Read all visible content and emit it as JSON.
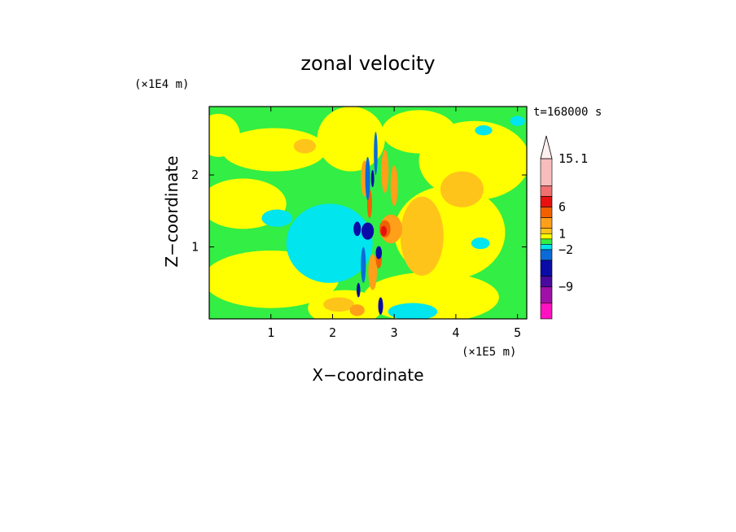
{
  "chart_data": {
    "type": "heatmap",
    "title": "zonal velocity",
    "xlabel": "X−coordinate",
    "ylabel": "Z−coordinate",
    "x_unit": "(×1E5 m)",
    "y_unit": "(×1E4 m)",
    "time_label": "t=168000 s",
    "xlim": [
      0,
      5.15
    ],
    "ylim": [
      0,
      2.95
    ],
    "x_ticks": [
      1,
      2,
      3,
      4,
      5
    ],
    "y_ticks": [
      1,
      2
    ],
    "x_tick_labels": [
      "1",
      "2",
      "3",
      "4",
      "5"
    ],
    "y_tick_labels": [
      "1",
      "2"
    ],
    "colorbar": {
      "labels": [
        {
          "value": 15.1,
          "text": "15.1"
        },
        {
          "value": 6,
          "text": "6"
        },
        {
          "value": 1,
          "text": "1"
        },
        {
          "value": -2,
          "text": "−2"
        },
        {
          "value": -9,
          "text": "−9"
        }
      ],
      "levels": [
        {
          "color": "#f7bcbc",
          "max": 15.1
        },
        {
          "color": "#f07070",
          "max": 10
        },
        {
          "color": "#e81010",
          "max": 8
        },
        {
          "color": "#f06000",
          "max": 6
        },
        {
          "color": "#ff9f1a",
          "max": 4
        },
        {
          "color": "#ffc41a",
          "max": 2
        },
        {
          "color": "#ffff00",
          "max": 1
        },
        {
          "color": "#33ee44",
          "max": 0
        },
        {
          "color": "#00e5ee",
          "max": -1
        },
        {
          "color": "#0a6bd8",
          "max": -2
        },
        {
          "color": "#0b0ba8",
          "max": -4
        },
        {
          "color": "#4a0a9e",
          "max": -7
        },
        {
          "color": "#a010a8",
          "max": -9
        },
        {
          "color": "#ff10c0",
          "max": -12
        }
      ]
    },
    "background_color": "#33ee44",
    "regions": [
      {
        "color": "#ffff00",
        "x": 0.15,
        "z": 2.55,
        "rx": 0.35,
        "rz": 0.3
      },
      {
        "color": "#ffff00",
        "x": 1.05,
        "z": 2.35,
        "rx": 0.85,
        "rz": 0.3
      },
      {
        "color": "#ffff00",
        "x": 0.55,
        "z": 1.6,
        "rx": 0.7,
        "rz": 0.35
      },
      {
        "color": "#ffff00",
        "x": 1.0,
        "z": 0.55,
        "rx": 1.1,
        "rz": 0.4
      },
      {
        "color": "#ffff00",
        "x": 2.2,
        "z": 0.15,
        "rx": 0.6,
        "rz": 0.25
      },
      {
        "color": "#ffff00",
        "x": 3.6,
        "z": 0.3,
        "rx": 1.1,
        "rz": 0.35
      },
      {
        "color": "#ffff00",
        "x": 3.9,
        "z": 1.2,
        "rx": 0.9,
        "rz": 0.65
      },
      {
        "color": "#ffff00",
        "x": 4.3,
        "z": 2.2,
        "rx": 0.9,
        "rz": 0.55
      },
      {
        "color": "#ffff00",
        "x": 2.3,
        "z": 2.5,
        "rx": 0.55,
        "rz": 0.45
      },
      {
        "color": "#ffff00",
        "x": 3.4,
        "z": 2.6,
        "rx": 0.6,
        "rz": 0.3
      },
      {
        "color": "#00e5ee",
        "x": 1.95,
        "z": 1.05,
        "rx": 0.7,
        "rz": 0.55
      },
      {
        "color": "#00e5ee",
        "x": 1.1,
        "z": 1.4,
        "rx": 0.25,
        "rz": 0.12
      },
      {
        "color": "#00e5ee",
        "x": 3.3,
        "z": 0.1,
        "rx": 0.4,
        "rz": 0.12
      },
      {
        "color": "#00e5ee",
        "x": 4.45,
        "z": 2.62,
        "rx": 0.14,
        "rz": 0.07
      },
      {
        "color": "#00e5ee",
        "x": 5.0,
        "z": 2.75,
        "rx": 0.12,
        "rz": 0.07
      },
      {
        "color": "#00e5ee",
        "x": 4.4,
        "z": 1.05,
        "rx": 0.15,
        "rz": 0.08
      },
      {
        "color": "#ffc41a",
        "x": 3.45,
        "z": 1.15,
        "rx": 0.35,
        "rz": 0.55
      },
      {
        "color": "#ffc41a",
        "x": 4.1,
        "z": 1.8,
        "rx": 0.35,
        "rz": 0.25
      },
      {
        "color": "#ffc41a",
        "x": 2.1,
        "z": 0.2,
        "rx": 0.25,
        "rz": 0.1
      },
      {
        "color": "#ffc41a",
        "x": 1.55,
        "z": 2.4,
        "rx": 0.18,
        "rz": 0.1
      },
      {
        "color": "#ff9f1a",
        "x": 2.95,
        "z": 1.25,
        "rx": 0.18,
        "rz": 0.2
      },
      {
        "color": "#ff9f1a",
        "x": 2.4,
        "z": 0.12,
        "rx": 0.12,
        "rz": 0.08
      },
      {
        "color": "#ff9f1a",
        "x": 2.52,
        "z": 1.95,
        "rx": 0.06,
        "rz": 0.25
      },
      {
        "color": "#ff9f1a",
        "x": 2.85,
        "z": 2.05,
        "rx": 0.06,
        "rz": 0.3
      },
      {
        "color": "#ff9f1a",
        "x": 3.0,
        "z": 1.85,
        "rx": 0.06,
        "rz": 0.28
      },
      {
        "color": "#ff9f1a",
        "x": 2.65,
        "z": 0.65,
        "rx": 0.07,
        "rz": 0.25
      },
      {
        "color": "#f06000",
        "x": 2.85,
        "z": 1.25,
        "rx": 0.09,
        "rz": 0.12
      },
      {
        "color": "#f06000",
        "x": 2.6,
        "z": 1.6,
        "rx": 0.04,
        "rz": 0.2
      },
      {
        "color": "#f06000",
        "x": 2.75,
        "z": 0.85,
        "rx": 0.05,
        "rz": 0.15
      },
      {
        "color": "#e81010",
        "x": 2.83,
        "z": 1.22,
        "rx": 0.05,
        "rz": 0.07
      },
      {
        "color": "#0a6bd8",
        "x": 2.57,
        "z": 1.95,
        "rx": 0.04,
        "rz": 0.3
      },
      {
        "color": "#0a6bd8",
        "x": 2.7,
        "z": 2.3,
        "rx": 0.03,
        "rz": 0.3
      },
      {
        "color": "#0a6bd8",
        "x": 2.5,
        "z": 0.75,
        "rx": 0.04,
        "rz": 0.25
      },
      {
        "color": "#0b0ba8",
        "x": 2.57,
        "z": 1.22,
        "rx": 0.1,
        "rz": 0.12
      },
      {
        "color": "#0b0ba8",
        "x": 2.4,
        "z": 1.25,
        "rx": 0.06,
        "rz": 0.1
      },
      {
        "color": "#0b0ba8",
        "x": 2.75,
        "z": 0.92,
        "rx": 0.05,
        "rz": 0.09
      },
      {
        "color": "#0b0ba8",
        "x": 2.65,
        "z": 1.95,
        "rx": 0.025,
        "rz": 0.12
      },
      {
        "color": "#0b0ba8",
        "x": 2.78,
        "z": 0.18,
        "rx": 0.04,
        "rz": 0.12
      },
      {
        "color": "#0b0ba8",
        "x": 2.42,
        "z": 0.4,
        "rx": 0.03,
        "rz": 0.1
      }
    ]
  }
}
